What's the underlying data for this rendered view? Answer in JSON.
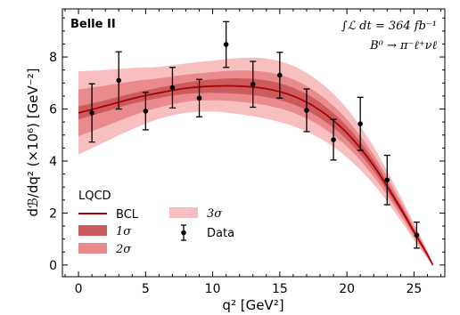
{
  "chart_data": {
    "type": "line",
    "experiment_label": "Belle II",
    "luminosity_label": "∫ℒ dt = 364 fb⁻¹",
    "decay_label": "B⁰ → π⁻ℓ⁺νℓ",
    "xlabel": "q² [GeV²]",
    "ylabel": "dℬ/dq² (×10⁶) [GeV⁻²]",
    "xlim": [
      -1.2,
      27.3
    ],
    "ylim": [
      -0.45,
      9.85
    ],
    "x_ticks": [
      0,
      5,
      10,
      15,
      20,
      25
    ],
    "y_ticks": [
      0,
      2,
      4,
      6,
      8
    ],
    "legend_title": "LQCD",
    "legend_position": "bottom-left",
    "legend_entries": {
      "bcl": "BCL",
      "s1": "1σ",
      "s2": "2σ",
      "s3": "3σ",
      "data": "Data"
    },
    "colors": {
      "bcl_line": "#aa0000",
      "band_1sigma": "#cc5b5e",
      "band_2sigma": "#e98a8d",
      "band_3sigma": "#f8bfc1",
      "data": "#000000"
    },
    "series": [
      {
        "name": "Data",
        "x": [
          1,
          3,
          5,
          7,
          9,
          11,
          13,
          15,
          17,
          19,
          21,
          23,
          25.2
        ],
        "y": [
          5.85,
          7.1,
          5.92,
          6.82,
          6.42,
          8.48,
          6.95,
          7.3,
          5.95,
          4.82,
          5.43,
          3.27,
          1.15
        ],
        "yerr": [
          1.12,
          1.1,
          0.72,
          0.78,
          0.72,
          0.88,
          0.88,
          0.88,
          0.82,
          0.78,
          1.02,
          0.95,
          0.5
        ]
      },
      {
        "name": "BCL",
        "x": [
          0,
          2,
          4,
          6,
          8,
          10,
          12,
          14,
          16,
          18,
          20,
          22,
          24,
          25,
          26,
          26.4
        ],
        "y": [
          5.85,
          6.12,
          6.4,
          6.62,
          6.8,
          6.88,
          6.88,
          6.78,
          6.5,
          5.95,
          5.08,
          3.82,
          2.18,
          1.28,
          0.4,
          0.0
        ],
        "band_1sigma": [
          0.25,
          0.22,
          0.2,
          0.2,
          0.22,
          0.26,
          0.3,
          0.32,
          0.32,
          0.3,
          0.26,
          0.21,
          0.14,
          0.1,
          0.05,
          0.0
        ],
        "band_2sigma": [
          0.9,
          0.78,
          0.66,
          0.56,
          0.52,
          0.54,
          0.6,
          0.64,
          0.64,
          0.6,
          0.52,
          0.42,
          0.28,
          0.2,
          0.1,
          0.0
        ],
        "band_3sigma": [
          1.6,
          1.38,
          1.18,
          1.0,
          0.95,
          0.98,
          1.08,
          1.16,
          1.16,
          1.08,
          0.94,
          0.72,
          0.46,
          0.32,
          0.15,
          0.0
        ]
      }
    ]
  }
}
